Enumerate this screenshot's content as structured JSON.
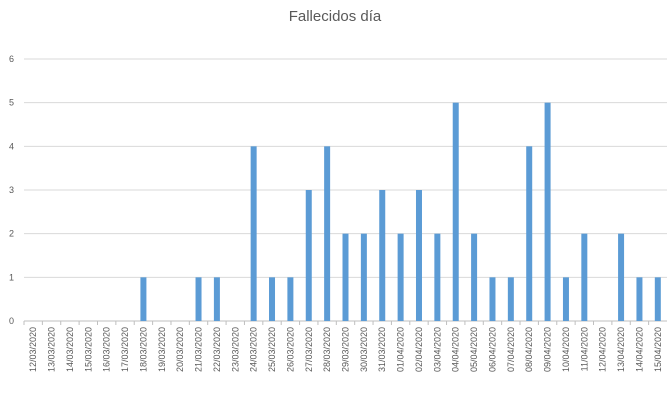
{
  "chart_data": {
    "type": "bar",
    "title": "Fallecidos día",
    "xlabel": "",
    "ylabel": "",
    "ylim": [
      0,
      6
    ],
    "yticks": [
      0,
      1,
      2,
      3,
      4,
      5,
      6
    ],
    "grid": true,
    "legend": "none",
    "bar_color": "#5b9bd5",
    "categories": [
      "12/03/2020",
      "13/03/2020",
      "14/03/2020",
      "15/03/2020",
      "16/03/2020",
      "17/03/2020",
      "18/03/2020",
      "19/03/2020",
      "20/03/2020",
      "21/03/2020",
      "22/03/2020",
      "23/03/2020",
      "24/03/2020",
      "25/03/2020",
      "26/03/2020",
      "27/03/2020",
      "28/03/2020",
      "29/03/2020",
      "30/03/2020",
      "31/03/2020",
      "01/04/2020",
      "02/04/2020",
      "03/04/2020",
      "04/04/2020",
      "05/04/2020",
      "06/04/2020",
      "07/04/2020",
      "08/04/2020",
      "09/04/2020",
      "10/04/2020",
      "11/04/2020",
      "12/04/2020",
      "13/04/2020",
      "14/04/2020",
      "15/04/2020"
    ],
    "values": [
      0,
      0,
      0,
      0,
      0,
      0,
      1,
      0,
      0,
      1,
      1,
      0,
      4,
      1,
      1,
      3,
      4,
      2,
      2,
      3,
      2,
      3,
      2,
      5,
      2,
      1,
      1,
      4,
      5,
      1,
      2,
      0,
      2,
      1,
      1
    ]
  }
}
